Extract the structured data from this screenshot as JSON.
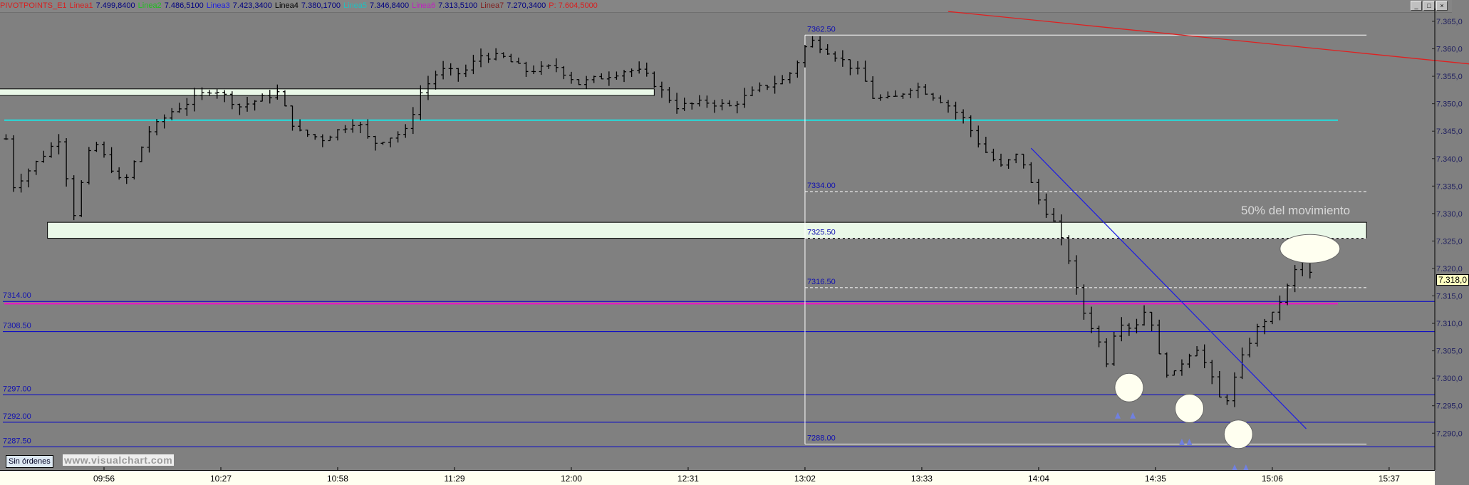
{
  "header": {
    "items": [
      {
        "label": "PIVOTPOINTS_E1",
        "color": "#d82020"
      },
      {
        "label": "Linea1",
        "color": "#d82020"
      },
      {
        "label": "7.499,8400",
        "color": "#000080"
      },
      {
        "label": "Linea2",
        "color": "#20c020"
      },
      {
        "label": "7.486,5100",
        "color": "#000080"
      },
      {
        "label": "Linea3",
        "color": "#2020e0"
      },
      {
        "label": "7.423,3400",
        "color": "#000080"
      },
      {
        "label": "Linea4",
        "color": "#000000"
      },
      {
        "label": "7.380,1700",
        "color": "#000080"
      },
      {
        "label": "Linea5",
        "color": "#20c0c0"
      },
      {
        "label": "7.346,8400",
        "color": "#000080"
      },
      {
        "label": "Linea6",
        "color": "#c020c0"
      },
      {
        "label": "7.313,5100",
        "color": "#000080"
      },
      {
        "label": "Linea7",
        "color": "#802020"
      },
      {
        "label": "7.270,3400",
        "color": "#000080"
      },
      {
        "label": "P: 7.604,5000",
        "color": "#d82020"
      }
    ],
    "window_buttons": [
      "_",
      "□",
      "×"
    ]
  },
  "status": {
    "orders_label": "Sin órdenes",
    "watermark": "www.visualchart.com"
  },
  "annotation": {
    "text": "50% del movimiento"
  },
  "last_price": "7.318,0",
  "chart_data": {
    "type": "ohlc",
    "y_ticks": [
      "7.365,0",
      "7.360,0",
      "7.355,0",
      "7.350,0",
      "7.345,0",
      "7.340,0",
      "7.335,0",
      "7.330,0",
      "7.325,0",
      "7.320,0",
      "7.315,0",
      "7.310,0",
      "7.305,0",
      "7.300,0",
      "7.295,0",
      "7.290,0"
    ],
    "y_tick_values": [
      7365,
      7360,
      7355,
      7350,
      7345,
      7340,
      7335,
      7330,
      7325,
      7320,
      7315,
      7310,
      7305,
      7300,
      7295,
      7290
    ],
    "x_ticks": [
      "09:56",
      "10:27",
      "10:58",
      "11:29",
      "12:00",
      "12:31",
      "13:02",
      "13:33",
      "14:04",
      "14:35",
      "15:06",
      "15:37"
    ],
    "ylim": [
      7285,
      7368
    ],
    "price_path": [
      [
        "09:30",
        7343.6
      ],
      [
        "09:31",
        7334.3
      ],
      [
        "09:44",
        7343.6
      ],
      [
        "09:48",
        7330
      ],
      [
        "09:53",
        7343.6
      ],
      [
        "10:01",
        7335
      ],
      [
        "10:08",
        7345
      ],
      [
        "10:14",
        7348.6
      ],
      [
        "10:25",
        7352.9
      ],
      [
        "10:32",
        7349.5
      ],
      [
        "10:42",
        7352
      ],
      [
        "10:47",
        7345
      ],
      [
        "10:54",
        7343.6
      ],
      [
        "11:03",
        7347
      ],
      [
        "11:07",
        7342.7
      ],
      [
        "11:16",
        7345
      ],
      [
        "11:20",
        7352
      ],
      [
        "11:25",
        7356.2
      ],
      [
        "11:31",
        7355.4
      ],
      [
        "11:36",
        7358.8
      ],
      [
        "11:42",
        7358.4
      ],
      [
        "11:48",
        7356
      ],
      [
        "11:56",
        7356.7
      ],
      [
        "12:02",
        7353.7
      ],
      [
        "12:15",
        7356.2
      ],
      [
        "12:19",
        7355.7
      ],
      [
        "12:28",
        7349.5
      ],
      [
        "12:36",
        7350.3
      ],
      [
        "12:42",
        7349.5
      ],
      [
        "12:50",
        7352.9
      ],
      [
        "12:57",
        7354.5
      ],
      [
        "13:01",
        7358.8
      ],
      [
        "13:03",
        7361.8
      ],
      [
        "13:10",
        7358.8
      ],
      [
        "13:17",
        7355.4
      ],
      [
        "13:20",
        7351.2
      ],
      [
        "13:25",
        7350.7
      ],
      [
        "13:31",
        7353.4
      ],
      [
        "13:39",
        7350.3
      ],
      [
        "13:44",
        7347.3
      ],
      [
        "13:49",
        7341.9
      ],
      [
        "13:54",
        7338.5
      ],
      [
        "13:59",
        7341
      ],
      [
        "14:03",
        7333.5
      ],
      [
        "14:08",
        7328.4
      ],
      [
        "14:12",
        7321.7
      ],
      [
        "14:15",
        7313.2
      ],
      [
        "14:19",
        7308.2
      ],
      [
        "14:22",
        7303.1
      ],
      [
        "14:25",
        7310.7
      ],
      [
        "14:29",
        7309
      ],
      [
        "14:33",
        7313.2
      ],
      [
        "14:36",
        7304
      ],
      [
        "14:39",
        7299.7
      ],
      [
        "14:43",
        7304
      ],
      [
        "14:46",
        7305.6
      ],
      [
        "14:49",
        7301.4
      ],
      [
        "14:53",
        7294.7
      ],
      [
        "14:55",
        7298
      ],
      [
        "14:59",
        7305.6
      ],
      [
        "15:03",
        7310.2
      ],
      [
        "15:06",
        7311.5
      ],
      [
        "15:10",
        7316.6
      ],
      [
        "15:14",
        7322.5
      ],
      [
        "15:16",
        7319
      ],
      [
        "15:17",
        7318
      ]
    ],
    "horizontal_levels": [
      {
        "label": "7314.00",
        "value": 7314.0,
        "color": "#0000cc"
      },
      {
        "label": "7308.50",
        "value": 7308.5,
        "color": "#0000cc"
      },
      {
        "label": "7297.00",
        "value": 7297.0,
        "color": "#0000cc"
      },
      {
        "label": "7292.00",
        "value": 7292.0,
        "color": "#0000cc"
      },
      {
        "label": "7287.50",
        "value": 7287.5,
        "color": "#0000cc"
      }
    ],
    "cyan_level": {
      "value": 7347.0,
      "color": "#20e0e0"
    },
    "magenta_level": {
      "value": 7313.6,
      "color": "#e020c0"
    },
    "zones": [
      {
        "from": 7351.5,
        "to": 7352.7,
        "start": "09:28",
        "end": "12:22",
        "color": "#eaf8e8"
      },
      {
        "from": 7325.5,
        "to": 7328.4,
        "start": "09:41",
        "end": "15:31",
        "color": "#eaf8e8"
      }
    ],
    "retracement": {
      "start": "13:02",
      "end": "15:31",
      "color": "#ffffff",
      "levels": [
        {
          "label": "7362.50",
          "value": 7362.5,
          "style": "solid"
        },
        {
          "label": "7334.00",
          "value": 7334.0,
          "style": "dashed"
        },
        {
          "label": "7325.50",
          "value": 7325.5,
          "style": "dashed"
        },
        {
          "label": "7316.50",
          "value": 7316.5,
          "style": "dashed"
        },
        {
          "label": "7288.00",
          "value": 7288.0,
          "style": "solid"
        }
      ]
    },
    "trendlines": [
      {
        "from": [
          "13:40",
          7366.8
        ],
        "to": [
          "16:12",
          7356.3
        ],
        "color": "#e02020"
      },
      {
        "from": [
          "14:02",
          7341.9
        ],
        "to": [
          "15:15",
          7290.8
        ],
        "color": "#2020e0"
      }
    ],
    "highlights": [
      {
        "shape": "ellipse",
        "time": "15:16",
        "price": 7323.6
      },
      {
        "shape": "circle",
        "time": "14:28",
        "price": 7298.3
      },
      {
        "shape": "circle",
        "time": "14:44",
        "price": 7294.5
      },
      {
        "shape": "circle",
        "time": "14:57",
        "price": 7289.8
      }
    ],
    "markers": [
      [
        "14:25",
        7293.3
      ],
      [
        "14:29",
        7293.3
      ],
      [
        "14:42",
        7288.5
      ],
      [
        "14:44",
        7288.5
      ],
      [
        "14:56",
        7283.8
      ],
      [
        "14:59",
        7283.8
      ]
    ],
    "colors": {
      "background": "#808080",
      "bars": "#000000",
      "axis_text": "#202060"
    }
  }
}
